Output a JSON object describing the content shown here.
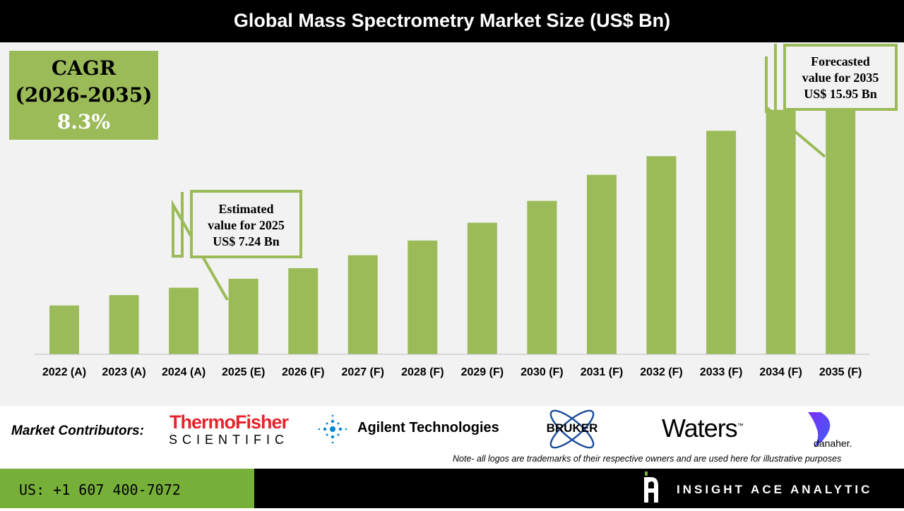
{
  "title": "Global Mass Spectrometry Market Size (US$ Bn)",
  "cagr": {
    "label": "CAGR",
    "period": "(2026-2035)",
    "value": "8.3%"
  },
  "callouts": {
    "estimated": {
      "line1": "Estimated",
      "line2": "value for 2025",
      "line3": "US$ 7.24 Bn"
    },
    "forecast": {
      "line1": "Forecasted",
      "line2": "value for 2035",
      "line3": "US$ 15.95 Bn"
    }
  },
  "chart_data": {
    "type": "bar",
    "title": "Global Mass Spectrometry Market Size (US$ Bn)",
    "categories": [
      "2022 (A)",
      "2023 (A)",
      "2024 (A)",
      "2025 (E)",
      "2026 (F)",
      "2027 (F)",
      "2028 (F)",
      "2029 (F)",
      "2030 (F)",
      "2031 (F)",
      "2032 (F)",
      "2033 (F)",
      "2034 (F)",
      "2035 (F)"
    ],
    "values": [
      6.08,
      6.53,
      6.85,
      7.24,
      7.7,
      8.26,
      8.9,
      9.67,
      10.62,
      11.75,
      12.56,
      13.66,
      14.57,
      15.95
    ],
    "ylim": [
      3.96,
      17.5
    ],
    "bar_color": "#9bbb59",
    "grid": false,
    "xlabel": "",
    "ylabel": ""
  },
  "contributors": {
    "label": "Market Contributors:",
    "logos": [
      {
        "name": "ThermoFisher",
        "sub": "SCIENTIFIC",
        "color": "#e4252c"
      },
      {
        "name": "Agilent Technologies",
        "color": "#0085d5"
      },
      {
        "name": "BRUKER",
        "color": "#1f4e9c"
      },
      {
        "name": "Waters",
        "tm": "™"
      },
      {
        "name": "danaher.",
        "color": "#7b2ff7"
      }
    ]
  },
  "note": "Note- all logos are trademarks of their respective owners and are used here for illustrative purposes",
  "footer": {
    "phone": "US: +1 607 400-7072",
    "brand": "INSIGHT ACE ANALYTIC",
    "phone_bg": "#77b039"
  }
}
